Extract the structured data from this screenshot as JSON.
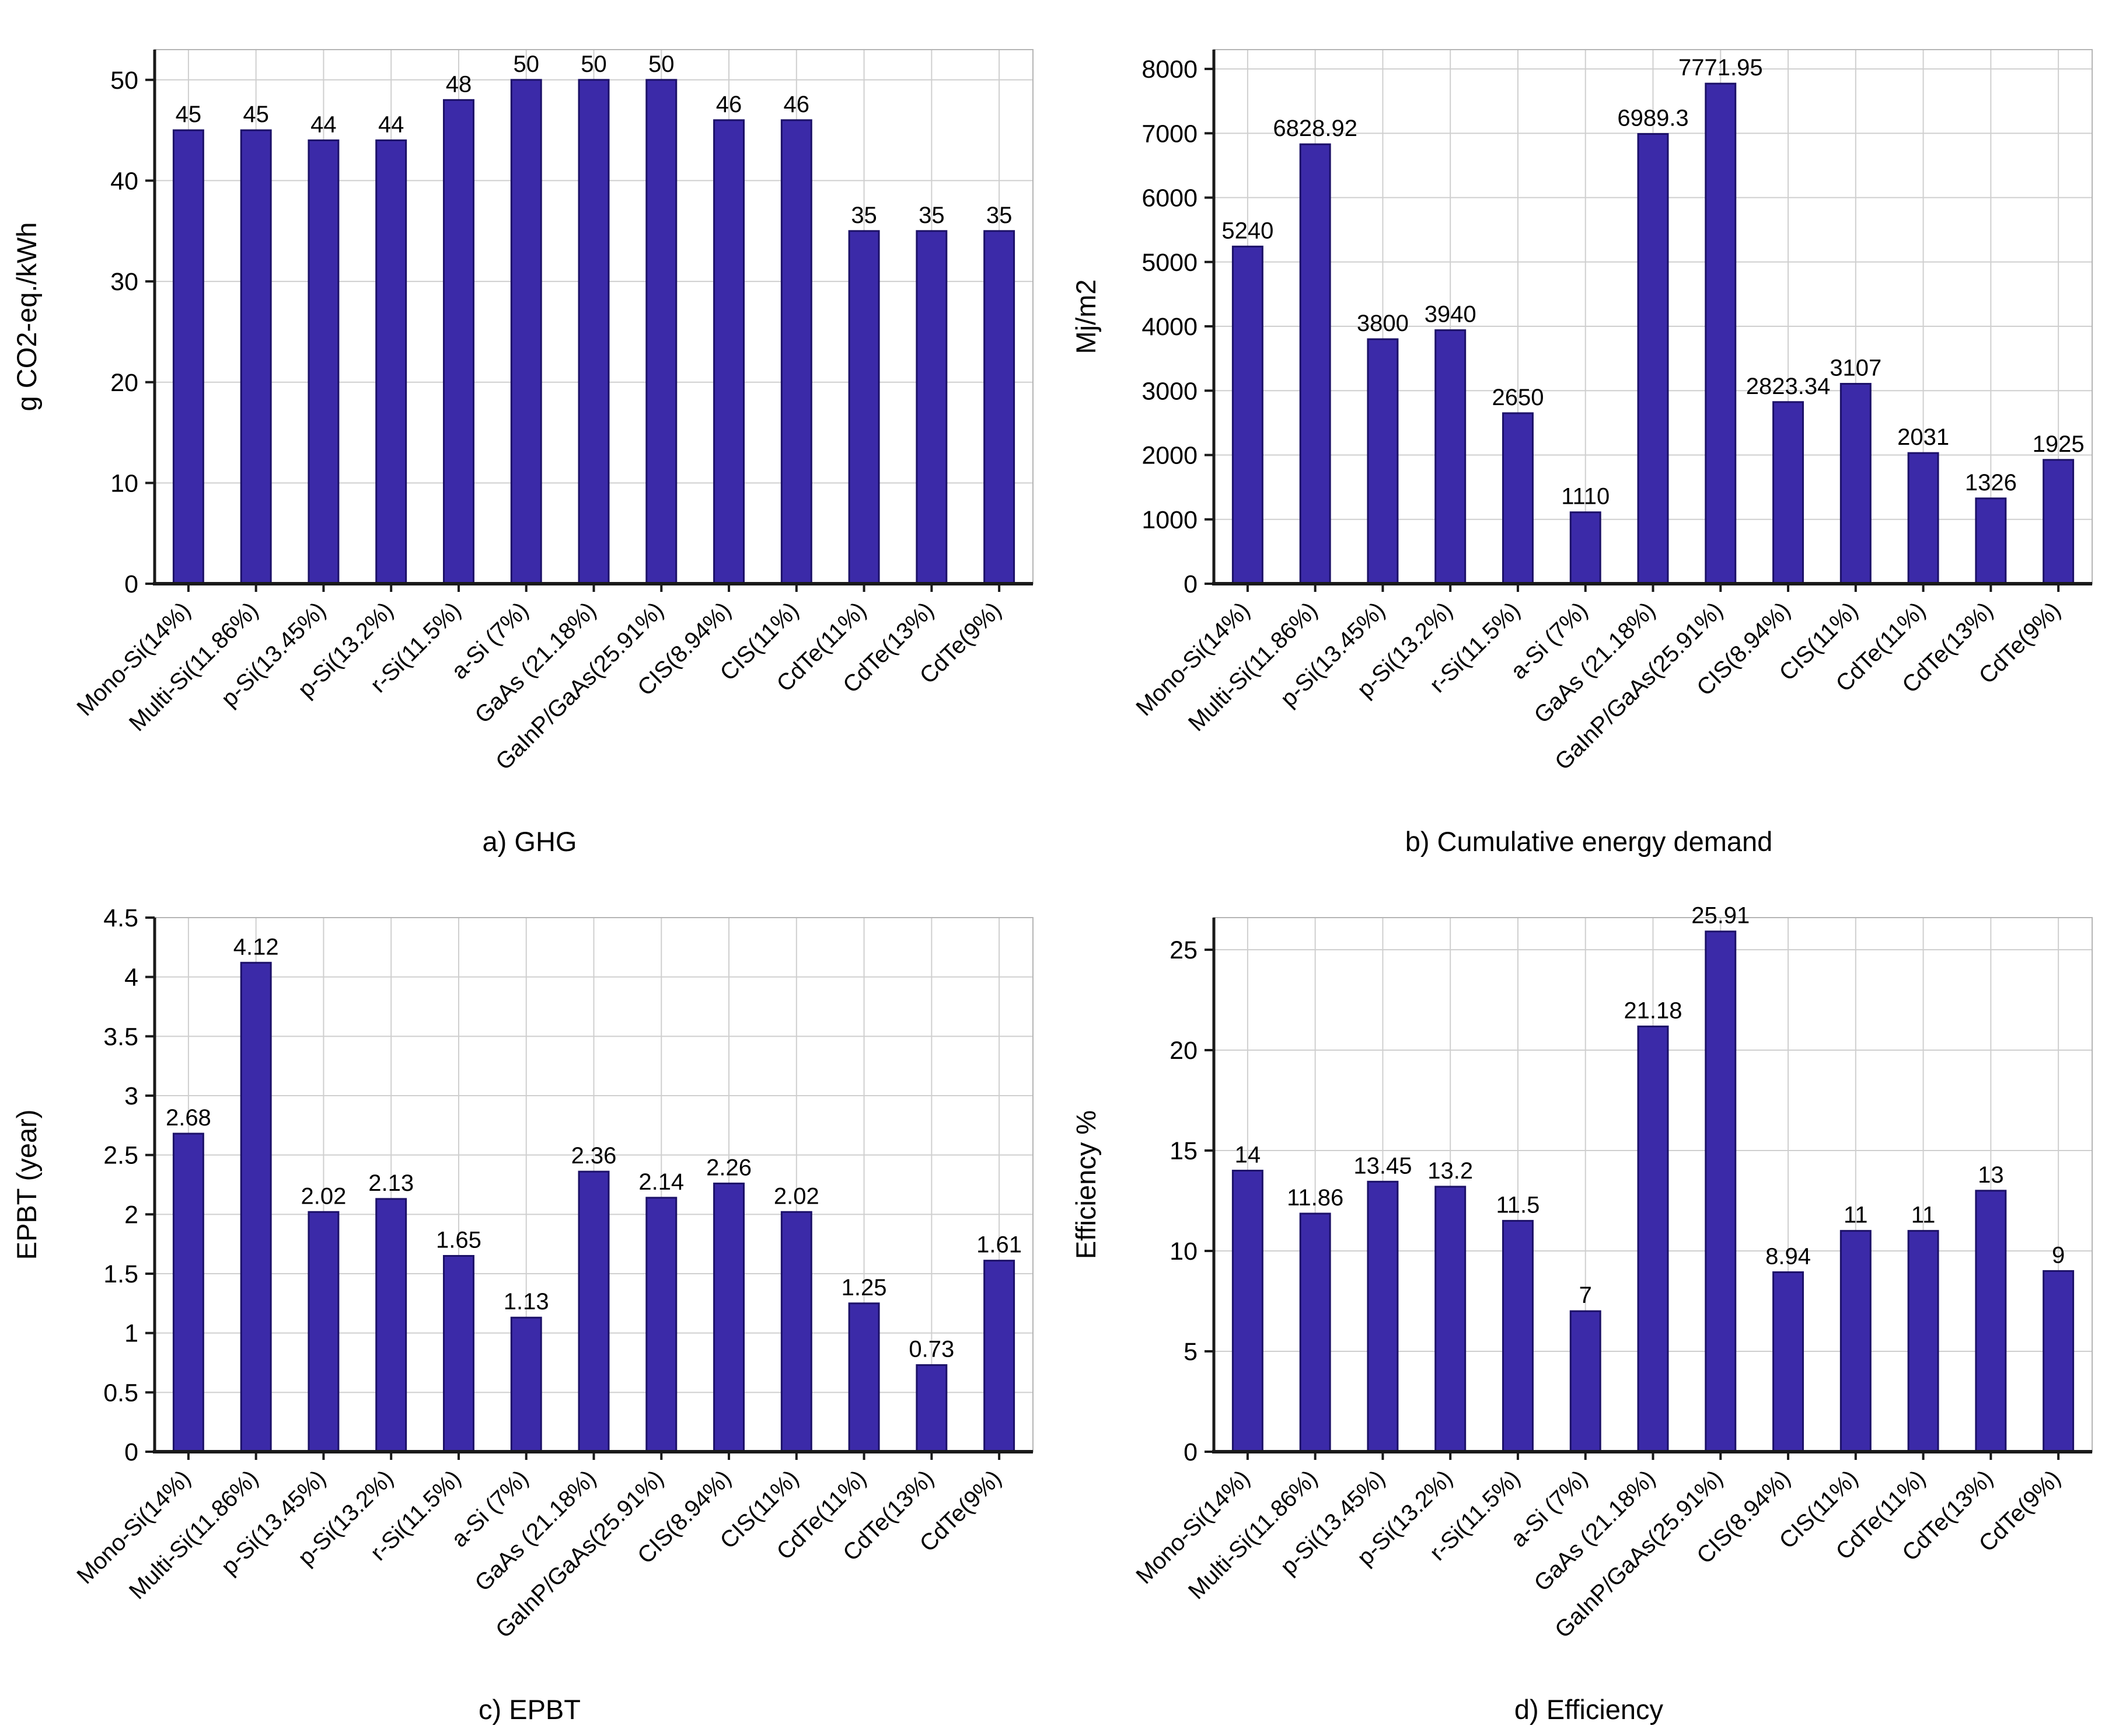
{
  "colors": {
    "bar_fill": "#3b2aa8",
    "bar_stroke": "#1c1168",
    "grid": "#cfcfcf",
    "frame": "#b5b5b5",
    "axis": "#1a1a1a",
    "text": "#000000"
  },
  "chart_data": [
    {
      "type": "bar",
      "panel": "a",
      "caption": "a) GHG",
      "ylabel": "g CO2-eq./kWh",
      "xlabel": "",
      "legend": "none",
      "grid": true,
      "categories": [
        "Mono-Si(14%)",
        "Multi-Si(11.86%)",
        "p-Si(13.45%)",
        "p-Si(13.2%)",
        "r-Si(11.5%)",
        "a-Si (7%)",
        "GaAs (21.18%)",
        "GaInP/GaAs(25.91%)",
        "CIS(8.94%)",
        "CIS(11%)",
        "CdTe(11%)",
        "CdTe(13%)",
        "CdTe(9%)"
      ],
      "values": [
        45,
        45,
        44,
        44,
        48,
        50,
        50,
        50,
        46,
        46,
        35,
        35,
        35
      ],
      "yticks": [
        0,
        10,
        20,
        30,
        40,
        50
      ],
      "ylim": [
        0,
        53
      ]
    },
    {
      "type": "bar",
      "panel": "b",
      "caption": "b) Cumulative energy demand",
      "ylabel": "Mj/m2",
      "xlabel": "",
      "legend": "none",
      "grid": true,
      "categories": [
        "Mono-Si(14%)",
        "Multi-Si(11.86%)",
        "p-Si(13.45%)",
        "p-Si(13.2%)",
        "r-Si(11.5%)",
        "a-Si (7%)",
        "GaAs (21.18%)",
        "GaInP/GaAs(25.91%)",
        "CIS(8.94%)",
        "CIS(11%)",
        "CdTe(11%)",
        "CdTe(13%)",
        "CdTe(9%)"
      ],
      "values": [
        5240,
        6828.92,
        3800,
        3940,
        2650,
        1110,
        6989.3,
        7771.95,
        2823.34,
        3107,
        2031,
        1326,
        1925
      ],
      "yticks": [
        0,
        1000,
        2000,
        3000,
        4000,
        5000,
        6000,
        7000,
        8000
      ],
      "ylim": [
        0,
        8300
      ]
    },
    {
      "type": "bar",
      "panel": "c",
      "caption": "c) EPBT",
      "ylabel": "EPBT (year)",
      "xlabel": "",
      "legend": "none",
      "grid": true,
      "categories": [
        "Mono-Si(14%)",
        "Multi-Si(11.86%)",
        "p-Si(13.45%)",
        "p-Si(13.2%)",
        "r-Si(11.5%)",
        "a-Si (7%)",
        "GaAs (21.18%)",
        "GaInP/GaAs(25.91%)",
        "CIS(8.94%)",
        "CIS(11%)",
        "CdTe(11%)",
        "CdTe(13%)",
        "CdTe(9%)"
      ],
      "values": [
        2.68,
        4.12,
        2.02,
        2.13,
        1.65,
        1.13,
        2.36,
        2.14,
        2.26,
        2.02,
        1.25,
        0.73,
        1.61
      ],
      "yticks": [
        0,
        0.5,
        1,
        1.5,
        2,
        2.5,
        3,
        3.5,
        4,
        4.5
      ],
      "ylim": [
        0,
        4.5
      ]
    },
    {
      "type": "bar",
      "panel": "d",
      "caption": "d) Efficiency",
      "ylabel": "Efficiency %",
      "xlabel": "",
      "legend": "none",
      "grid": true,
      "categories": [
        "Mono-Si(14%)",
        "Multi-Si(11.86%)",
        "p-Si(13.45%)",
        "p-Si(13.2%)",
        "r-Si(11.5%)",
        "a-Si (7%)",
        "GaAs (21.18%)",
        "GaInP/GaAs(25.91%)",
        "CIS(8.94%)",
        "CIS(11%)",
        "CdTe(11%)",
        "CdTe(13%)",
        "CdTe(9%)"
      ],
      "values": [
        14,
        11.86,
        13.45,
        13.2,
        11.5,
        7,
        21.18,
        25.91,
        8.94,
        11,
        11,
        13,
        9
      ],
      "yticks": [
        0,
        5,
        10,
        15,
        20,
        25
      ],
      "ylim": [
        0,
        26.6
      ]
    }
  ]
}
